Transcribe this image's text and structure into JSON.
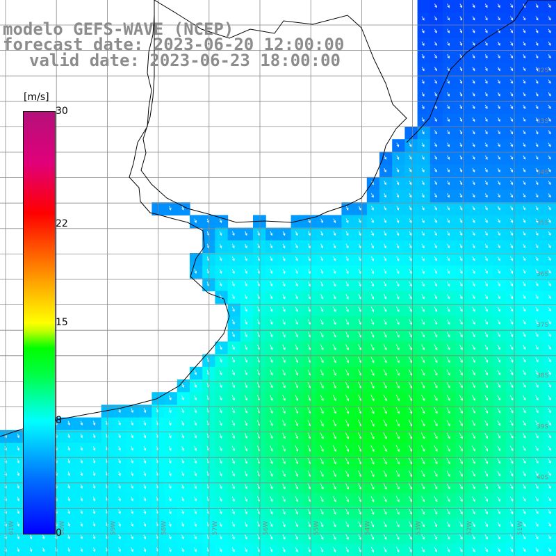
{
  "title": {
    "line1": "modelo GEFS-WAVE (NCEP)",
    "line2": "forecast date: 2023-06-20 12:00:00",
    "line3": "valid date: 2023-06-23 18:00:00"
  },
  "colorbar": {
    "unit": "[m/s]",
    "range": [
      0,
      30
    ],
    "ticks": [
      {
        "label": "30",
        "value": 30
      },
      {
        "label": "22",
        "value": 22
      },
      {
        "label": "15",
        "value": 15
      },
      {
        "label": "8",
        "value": 8
      },
      {
        "label": "0",
        "value": 0
      }
    ]
  },
  "colors": {
    "ocean_low": "#0000ff",
    "ocean_mid": "#00ffff",
    "ocean_high": "#00ff00",
    "land": "#ffffff",
    "arrows": "#ffffff",
    "grid": "#888888",
    "coast": "#000000",
    "title": "#8c8c8c"
  },
  "map": {
    "longitude_labels": [
      "61W",
      "60W",
      "59W",
      "58W",
      "57W",
      "56W",
      "55W",
      "54W",
      "53W",
      "52W",
      "51W"
    ],
    "latitude_labels": [
      "32S",
      "33S",
      "34S",
      "35S",
      "36S",
      "37S",
      "38S",
      "39S",
      "40S"
    ]
  }
}
